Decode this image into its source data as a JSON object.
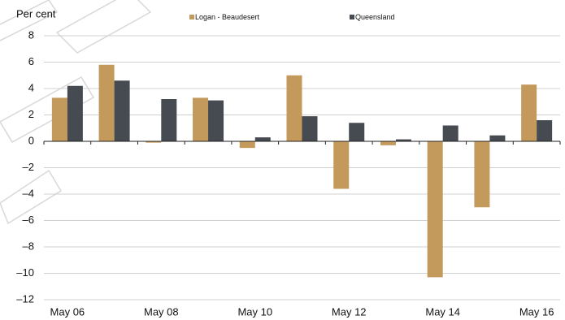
{
  "chart_data": {
    "type": "bar",
    "y_label": "Per cent",
    "categories": [
      "May 06",
      null,
      "May 08",
      null,
      "May 10",
      null,
      "May 12",
      null,
      "May 14",
      null,
      "May 16"
    ],
    "series": [
      {
        "name": "Logan - Beaudesert",
        "color": "#c49a5c",
        "values": [
          3.3,
          5.8,
          -0.1,
          3.3,
          -0.5,
          5.0,
          -3.6,
          -0.3,
          -10.3,
          -5.0,
          4.3
        ]
      },
      {
        "name": "Queensland",
        "color": "#464a51",
        "values": [
          4.2,
          4.6,
          3.2,
          3.1,
          0.3,
          1.9,
          1.4,
          0.15,
          1.2,
          0.45,
          1.6
        ]
      }
    ],
    "ylim": [
      -12,
      8
    ],
    "yticks": [
      {
        "value": -12,
        "label": "–12"
      },
      {
        "value": -10,
        "label": "–10"
      },
      {
        "value": -8,
        "label": "–8"
      },
      {
        "value": -6,
        "label": "–6"
      },
      {
        "value": -4,
        "label": "–4"
      },
      {
        "value": -2,
        "label": "–2"
      },
      0,
      2,
      4,
      6,
      8
    ],
    "grid": true
  }
}
